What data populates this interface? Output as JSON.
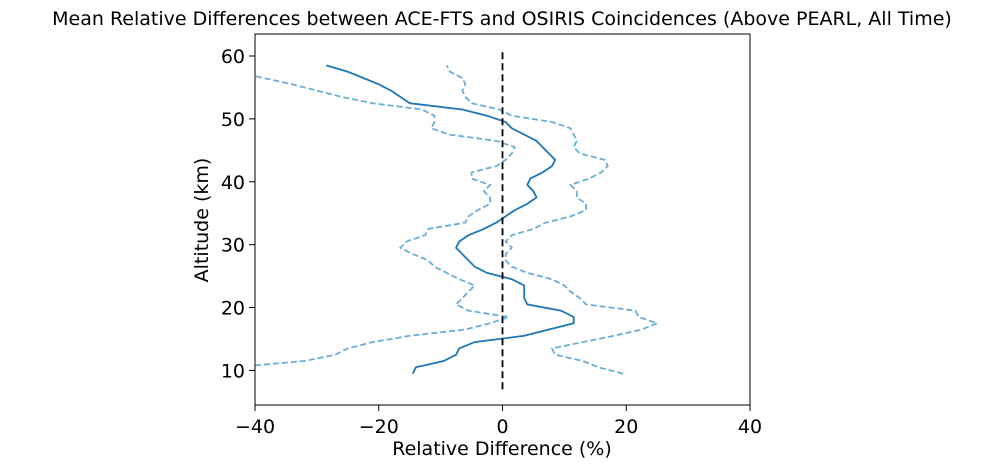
{
  "chart_data": {
    "type": "line",
    "title": "Mean Relative Differences between ACE-FTS and OSIRIS Coincidences (Above PEARL, All Time)",
    "xlabel": "Relative Difference (%)",
    "ylabel": "Altitude (km)",
    "xlim": [
      -40,
      40
    ],
    "ylim": [
      4.5,
      63.5
    ],
    "xticks": [
      -40,
      -20,
      0,
      20,
      40
    ],
    "xtick_labels": [
      "−40",
      "−20",
      "0",
      "20",
      "40"
    ],
    "yticks": [
      10,
      20,
      30,
      40,
      50,
      60
    ],
    "ytick_labels": [
      "10",
      "20",
      "30",
      "40",
      "50",
      "60"
    ],
    "grid": false,
    "legend": false,
    "colors": {
      "mean": "#1f77b4",
      "bounds": "#6baed6",
      "zero": "#000000"
    },
    "series": [
      {
        "style": "solid",
        "points": [
          [
            -14.5,
            9.5
          ],
          [
            -14.0,
            10.5
          ],
          [
            -9.5,
            11.5
          ],
          [
            -7.5,
            12.5
          ],
          [
            -7.0,
            13.5
          ],
          [
            -4.5,
            14.5
          ],
          [
            3.5,
            15.5
          ],
          [
            7.5,
            16.5
          ],
          [
            11.5,
            17.5
          ],
          [
            11.5,
            18.5
          ],
          [
            9.5,
            19.5
          ],
          [
            4.0,
            20.5
          ],
          [
            3.5,
            21.5
          ],
          [
            3.5,
            22.5
          ],
          [
            3.5,
            23.5
          ],
          [
            1.5,
            24.5
          ],
          [
            -2.5,
            25.5
          ],
          [
            -4.5,
            26.5
          ],
          [
            -5.5,
            27.5
          ],
          [
            -6.5,
            28.5
          ],
          [
            -7.5,
            29.5
          ],
          [
            -7.0,
            30.5
          ],
          [
            -5.5,
            31.5
          ],
          [
            -3.0,
            32.5
          ],
          [
            -1.0,
            33.5
          ],
          [
            0.5,
            34.5
          ],
          [
            2.0,
            35.5
          ],
          [
            4.0,
            36.5
          ],
          [
            5.5,
            37.5
          ],
          [
            5.0,
            38.5
          ],
          [
            4.0,
            39.5
          ],
          [
            4.5,
            40.5
          ],
          [
            6.5,
            41.5
          ],
          [
            8.0,
            42.5
          ],
          [
            8.5,
            43.5
          ],
          [
            7.5,
            44.5
          ],
          [
            6.5,
            45.5
          ],
          [
            5.5,
            46.5
          ],
          [
            3.5,
            47.5
          ],
          [
            1.5,
            48.5
          ],
          [
            0.5,
            49.5
          ],
          [
            -2.5,
            50.5
          ],
          [
            -6.5,
            51.5
          ],
          [
            -15.0,
            52.5
          ],
          [
            -16.5,
            53.5
          ],
          [
            -18.0,
            54.5
          ],
          [
            -20.0,
            55.5
          ],
          [
            -22.5,
            56.5
          ],
          [
            -25.0,
            57.5
          ],
          [
            -28.5,
            58.5
          ]
        ]
      },
      {
        "style": "dashed",
        "points": [
          [
            -40.0,
            10.8
          ],
          [
            -32.0,
            11.5
          ],
          [
            -27.0,
            12.5
          ],
          [
            -25.0,
            13.5
          ],
          [
            -21.0,
            14.5
          ],
          [
            -15.0,
            15.5
          ],
          [
            -6.0,
            16.5
          ],
          [
            -2.0,
            17.5
          ],
          [
            1.0,
            18.5
          ],
          [
            -5.5,
            19.5
          ],
          [
            -7.5,
            20.5
          ],
          [
            -6.5,
            21.5
          ],
          [
            -5.5,
            22.5
          ],
          [
            -4.5,
            23.5
          ],
          [
            -7.0,
            24.5
          ],
          [
            -9.0,
            25.5
          ],
          [
            -11.0,
            26.5
          ],
          [
            -12.0,
            27.5
          ],
          [
            -14.5,
            28.5
          ],
          [
            -16.5,
            29.5
          ],
          [
            -15.5,
            30.5
          ],
          [
            -12.5,
            31.5
          ],
          [
            -12.0,
            32.5
          ],
          [
            -6.0,
            33.5
          ],
          [
            -5.5,
            34.5
          ],
          [
            -4.0,
            35.5
          ],
          [
            -2.0,
            36.5
          ],
          [
            -2.0,
            37.5
          ],
          [
            -3.0,
            38.5
          ],
          [
            -2.0,
            39.5
          ],
          [
            -5.0,
            40.5
          ],
          [
            -5.0,
            41.5
          ],
          [
            -1.0,
            42.5
          ],
          [
            0.5,
            43.5
          ],
          [
            1.5,
            44.5
          ],
          [
            2.0,
            45.5
          ],
          [
            -1.0,
            46.5
          ],
          [
            -8.5,
            47.5
          ],
          [
            -11.5,
            48.5
          ],
          [
            -11.0,
            49.5
          ],
          [
            -11.0,
            50.5
          ],
          [
            -13.0,
            51.5
          ],
          [
            -21.0,
            52.5
          ],
          [
            -26.0,
            53.5
          ],
          [
            -30.0,
            54.5
          ],
          [
            -34.0,
            55.5
          ],
          [
            -40.0,
            56.8
          ]
        ]
      },
      {
        "style": "dashed",
        "points": [
          [
            19.5,
            9.5
          ],
          [
            15.5,
            10.5
          ],
          [
            13.0,
            11.5
          ],
          [
            8.5,
            12.5
          ],
          [
            8.0,
            13.5
          ],
          [
            13.0,
            14.5
          ],
          [
            18.0,
            15.5
          ],
          [
            22.5,
            16.5
          ],
          [
            25.0,
            17.5
          ],
          [
            22.0,
            18.5
          ],
          [
            21.5,
            19.5
          ],
          [
            13.5,
            20.5
          ],
          [
            12.5,
            21.5
          ],
          [
            11.0,
            22.5
          ],
          [
            10.0,
            23.5
          ],
          [
            8.0,
            24.5
          ],
          [
            4.0,
            25.5
          ],
          [
            1.5,
            26.5
          ],
          [
            0.5,
            27.5
          ],
          [
            0.5,
            28.5
          ],
          [
            1.5,
            29.5
          ],
          [
            0.5,
            30.5
          ],
          [
            1.5,
            31.5
          ],
          [
            5.0,
            32.5
          ],
          [
            7.0,
            33.5
          ],
          [
            11.0,
            34.5
          ],
          [
            13.5,
            35.5
          ],
          [
            13.5,
            36.5
          ],
          [
            12.0,
            37.5
          ],
          [
            12.0,
            38.5
          ],
          [
            11.0,
            39.5
          ],
          [
            14.0,
            40.5
          ],
          [
            16.0,
            41.5
          ],
          [
            17.0,
            42.5
          ],
          [
            16.5,
            43.5
          ],
          [
            12.5,
            44.5
          ],
          [
            11.5,
            45.5
          ],
          [
            12.0,
            46.5
          ],
          [
            11.5,
            47.5
          ],
          [
            11.0,
            48.5
          ],
          [
            8.0,
            49.5
          ],
          [
            1.5,
            50.5
          ],
          [
            -0.5,
            51.5
          ],
          [
            -5.0,
            52.5
          ],
          [
            -6.0,
            53.5
          ],
          [
            -6.5,
            54.5
          ],
          [
            -6.0,
            55.5
          ],
          [
            -6.5,
            56.5
          ],
          [
            -8.5,
            57.5
          ],
          [
            -9.0,
            58.5
          ]
        ]
      },
      {
        "style": "zero-line",
        "points": [
          [
            0,
            7.0
          ],
          [
            0,
            61.0
          ]
        ]
      }
    ]
  }
}
